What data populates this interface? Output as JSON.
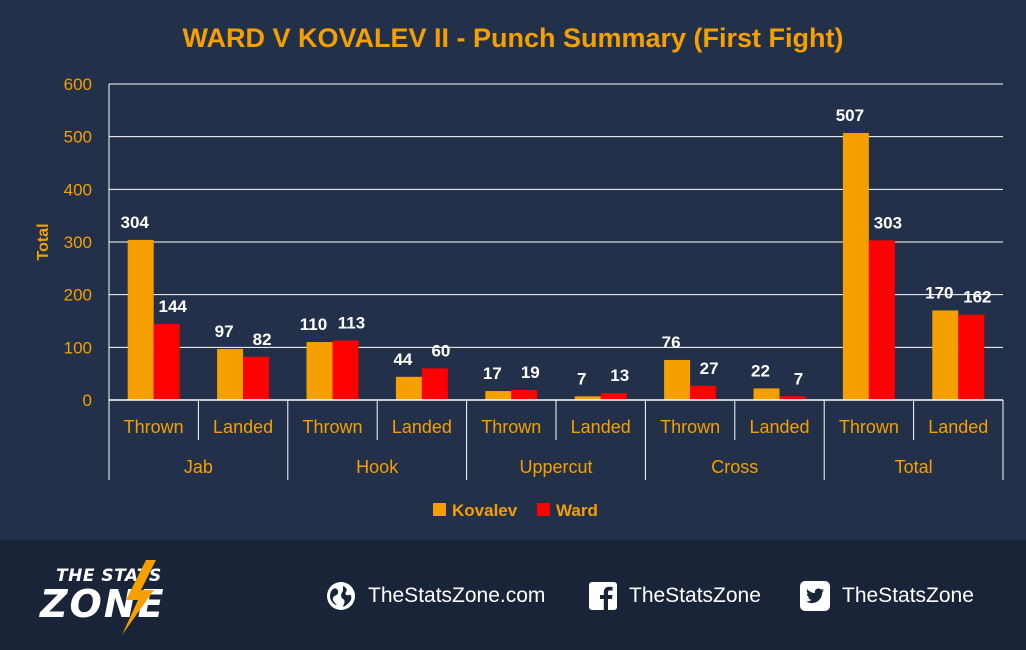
{
  "chart_data": {
    "type": "bar",
    "title": "WARD V KOVALEV II - Punch Summary (First Fight)",
    "ylabel": "Total",
    "xlabel": "",
    "ylim": [
      0,
      600
    ],
    "yticks": [
      0,
      100,
      200,
      300,
      400,
      500,
      600
    ],
    "grid": true,
    "legend_position": "bottom",
    "groups": [
      "Jab",
      "Hook",
      "Uppercut",
      "Cross",
      "Total"
    ],
    "categories": [
      "Thrown",
      "Landed",
      "Thrown",
      "Landed",
      "Thrown",
      "Landed",
      "Thrown",
      "Landed",
      "Thrown",
      "Landed"
    ],
    "series": [
      {
        "name": "Kovalev",
        "color": "#f5a000",
        "values": [
          304,
          97,
          110,
          44,
          17,
          7,
          76,
          22,
          507,
          170
        ]
      },
      {
        "name": "Ward",
        "color": "#ff0000",
        "values": [
          144,
          82,
          113,
          60,
          19,
          13,
          27,
          7,
          303,
          162
        ]
      }
    ]
  },
  "colors": {
    "background": "#22304a",
    "footer": "#1a2439",
    "title": "#f5a000",
    "axis_text": "#f5a000",
    "grid": "#ffffff"
  },
  "footer": {
    "logo_top": "THE STATS",
    "logo_bottom": "ZONE",
    "website": "TheStatsZone.com",
    "facebook": "TheStatsZone",
    "twitter": "TheStatsZone",
    "icons": [
      "globe-icon",
      "facebook-icon",
      "twitter-icon"
    ]
  }
}
